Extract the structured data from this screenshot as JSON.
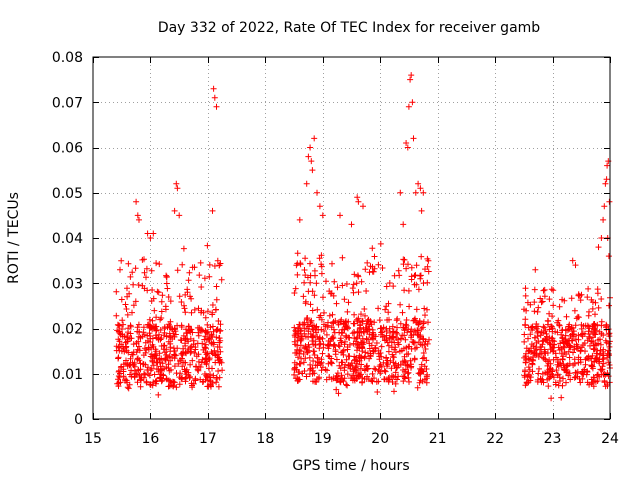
{
  "chart_data": {
    "type": "scatter",
    "title": "Day 332 of 2022, Rate Of TEC Index for receiver gamb",
    "xlabel": "GPS time / hours",
    "ylabel": "ROTI / TECUs",
    "xlim": [
      15,
      24
    ],
    "ylim": [
      0,
      0.08
    ],
    "xticks": [
      15,
      16,
      17,
      18,
      19,
      20,
      21,
      22,
      23,
      24
    ],
    "yticks": [
      0,
      0.01,
      0.02,
      0.03,
      0.04,
      0.05,
      0.06,
      0.07,
      0.08
    ],
    "xtick_labels": [
      "15",
      "16",
      "17",
      "18",
      "19",
      "20",
      "21",
      "22",
      "23",
      "24"
    ],
    "ytick_labels": [
      "0",
      "0.01",
      "0.02",
      "0.03",
      "0.04",
      "0.05",
      "0.06",
      "0.07",
      "0.08"
    ],
    "grid": true,
    "marker": "+",
    "series": [
      {
        "name": "ROTI",
        "color": "#ff0000",
        "segments": [
          {
            "x_start": 15.4,
            "x_end": 17.25,
            "y_min": 0.004,
            "y_max": 0.04
          },
          {
            "x_start": 18.5,
            "x_end": 20.85,
            "y_min": 0.005,
            "y_max": 0.04
          },
          {
            "x_start": 22.5,
            "x_end": 24.0,
            "y_min": 0.004,
            "y_max": 0.029
          }
        ],
        "peaks": [
          {
            "x": 15.75,
            "y": 0.048
          },
          {
            "x": 15.78,
            "y": 0.045
          },
          {
            "x": 15.8,
            "y": 0.044
          },
          {
            "x": 15.95,
            "y": 0.041
          },
          {
            "x": 16.0,
            "y": 0.04
          },
          {
            "x": 16.05,
            "y": 0.041
          },
          {
            "x": 16.45,
            "y": 0.052
          },
          {
            "x": 16.47,
            "y": 0.051
          },
          {
            "x": 16.42,
            "y": 0.046
          },
          {
            "x": 16.5,
            "y": 0.045
          },
          {
            "x": 17.1,
            "y": 0.073
          },
          {
            "x": 17.12,
            "y": 0.071
          },
          {
            "x": 17.15,
            "y": 0.069
          },
          {
            "x": 17.08,
            "y": 0.046
          },
          {
            "x": 18.75,
            "y": 0.058
          },
          {
            "x": 18.78,
            "y": 0.06
          },
          {
            "x": 18.8,
            "y": 0.057
          },
          {
            "x": 18.85,
            "y": 0.062
          },
          {
            "x": 18.82,
            "y": 0.055
          },
          {
            "x": 18.72,
            "y": 0.052
          },
          {
            "x": 18.9,
            "y": 0.05
          },
          {
            "x": 18.95,
            "y": 0.047
          },
          {
            "x": 18.6,
            "y": 0.044
          },
          {
            "x": 19.0,
            "y": 0.045
          },
          {
            "x": 19.3,
            "y": 0.045
          },
          {
            "x": 19.6,
            "y": 0.049
          },
          {
            "x": 19.62,
            "y": 0.048
          },
          {
            "x": 19.7,
            "y": 0.047
          },
          {
            "x": 19.5,
            "y": 0.043
          },
          {
            "x": 20.4,
            "y": 0.043
          },
          {
            "x": 20.35,
            "y": 0.05
          },
          {
            "x": 20.45,
            "y": 0.061
          },
          {
            "x": 20.48,
            "y": 0.06
          },
          {
            "x": 20.5,
            "y": 0.069
          },
          {
            "x": 20.52,
            "y": 0.075
          },
          {
            "x": 20.54,
            "y": 0.076
          },
          {
            "x": 20.56,
            "y": 0.07
          },
          {
            "x": 20.58,
            "y": 0.062
          },
          {
            "x": 20.62,
            "y": 0.05
          },
          {
            "x": 20.66,
            "y": 0.052
          },
          {
            "x": 20.7,
            "y": 0.051
          },
          {
            "x": 20.72,
            "y": 0.046
          },
          {
            "x": 20.75,
            "y": 0.05
          },
          {
            "x": 22.7,
            "y": 0.033
          },
          {
            "x": 23.35,
            "y": 0.035
          },
          {
            "x": 23.4,
            "y": 0.034
          },
          {
            "x": 23.8,
            "y": 0.038
          },
          {
            "x": 23.85,
            "y": 0.04
          },
          {
            "x": 23.88,
            "y": 0.044
          },
          {
            "x": 23.9,
            "y": 0.047
          },
          {
            "x": 23.92,
            "y": 0.052
          },
          {
            "x": 23.94,
            "y": 0.053
          },
          {
            "x": 23.95,
            "y": 0.056
          },
          {
            "x": 23.97,
            "y": 0.057
          },
          {
            "x": 23.99,
            "y": 0.048
          },
          {
            "x": 23.96,
            "y": 0.04
          },
          {
            "x": 23.98,
            "y": 0.036
          }
        ]
      }
    ]
  }
}
